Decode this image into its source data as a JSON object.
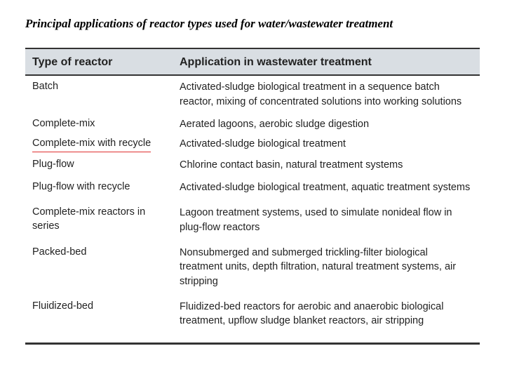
{
  "title": "Principal applications of reactor types used for water/wastewater treatment",
  "headers": {
    "left": "Type of reactor",
    "right": "Application in wastewater treatment"
  },
  "rows": [
    {
      "type": "Batch",
      "application": "Activated-sludge biological treatment in a sequence batch reactor, mixing of concentrated solutions into working solutions",
      "highlight": false
    },
    {
      "type": "Complete-mix",
      "application": "Aerated lagoons, aerobic sludge digestion",
      "highlight": false
    },
    {
      "type": "Complete-mix with recycle",
      "application": "Activated-sludge biological treatment",
      "highlight": true
    },
    {
      "type": "Plug-flow",
      "application": "Chlorine contact basin, natural treatment systems",
      "highlight": false
    },
    {
      "type": "Plug-flow with recycle",
      "application": "Activated-sludge biological treatment, aquatic treatment systems",
      "highlight": false
    },
    {
      "type": "Complete-mix reactors in series",
      "application": "Lagoon treatment systems, used to simulate nonideal flow in plug-flow reactors",
      "highlight": false
    },
    {
      "type": "Packed-bed",
      "application": "Nonsubmerged and submerged trickling-filter biological treatment units, depth filtration, natural treatment systems, air stripping",
      "highlight": false
    },
    {
      "type": "Fluidized-bed",
      "application": "Fluidized-bed reactors for aerobic and anaerobic biological treatment, upflow sludge blanket reactors, air stripping",
      "highlight": false
    }
  ],
  "colors": {
    "header_bg": "#d9dee3",
    "text": "#222222",
    "underline": "#e03030",
    "rule": "#333333",
    "background": "#ffffff"
  },
  "fonts": {
    "title_size": 17,
    "header_size": 16,
    "body_size": 14.5
  }
}
